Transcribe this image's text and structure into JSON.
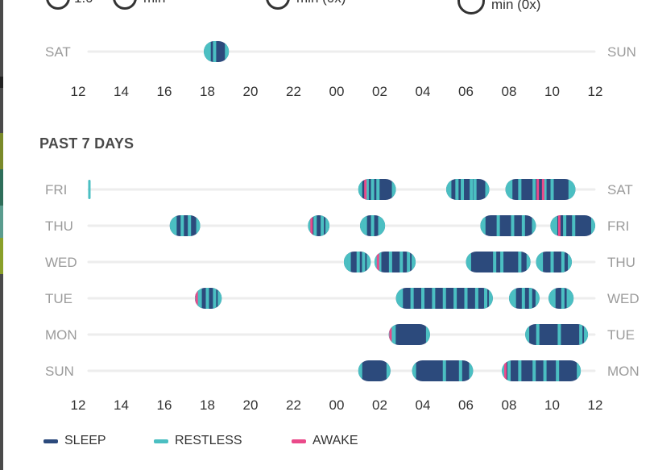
{
  "header_partial": {
    "item_1_value": "1.0",
    "item_2_unit": "min",
    "item_3_value": "min (0x)",
    "item_4_value": "min (0x)"
  },
  "section_title": "PAST 7 DAYS",
  "x_tick_labels": [
    "12",
    "14",
    "16",
    "18",
    "20",
    "22",
    "00",
    "02",
    "04",
    "06",
    "08",
    "10",
    "12"
  ],
  "legend": [
    {
      "key": "sleep",
      "label": "SLEEP",
      "color": "#2c4a7c"
    },
    {
      "key": "restless",
      "label": "RESTLESS",
      "color": "#4bbfc2"
    },
    {
      "key": "awake",
      "label": "AWAKE",
      "color": "#ea4a8a"
    }
  ],
  "chart_data": [
    {
      "type": "timeline",
      "x_unit": "hour (noon to noon)",
      "x_range": [
        "12:00",
        "12:00"
      ],
      "rows": [
        {
          "start_label": "SAT",
          "end_label": "SUN",
          "sessions": [
            {
              "start": "17:50",
              "end": "19:00",
              "restless": [
                "18:05",
                "18:20"
              ],
              "awake": []
            }
          ]
        }
      ]
    },
    {
      "type": "timeline",
      "title": "PAST 7 DAYS",
      "x_unit": "hour (noon to noon)",
      "x_range": [
        "12:00",
        "12:00"
      ],
      "rows": [
        {
          "start_label": "FRI",
          "end_label": "SAT",
          "sessions": [
            {
              "start": "12:28",
              "end": "12:32",
              "restless": [],
              "awake": []
            },
            {
              "start": "01:00",
              "end": "02:45",
              "restless": [
                "01:05",
                "01:25",
                "01:40",
                "01:55"
              ],
              "awake": [
                "01:20"
              ]
            },
            {
              "start": "05:05",
              "end": "07:05",
              "restless": [
                "05:15",
                "05:35",
                "05:50",
                "06:15",
                "06:25"
              ],
              "awake": []
            },
            {
              "start": "07:50",
              "end": "11:05",
              "restless": [
                "08:05",
                "08:30",
                "09:10",
                "09:40",
                "10:00",
                "10:50"
              ],
              "awake": [
                "09:20",
                "09:35"
              ]
            }
          ]
        },
        {
          "start_label": "THU",
          "end_label": "FRI",
          "sessions": [
            {
              "start": "16:15",
              "end": "17:40",
              "restless": [
                "16:30",
                "16:50",
                "17:10"
              ],
              "awake": []
            },
            {
              "start": "22:40",
              "end": "23:40",
              "restless": [
                "23:00",
                "23:20"
              ],
              "awake": [
                "22:50"
              ]
            },
            {
              "start": "01:05",
              "end": "02:15",
              "restless": [
                "01:20",
                "01:40",
                "02:00"
              ],
              "awake": []
            },
            {
              "start": "06:40",
              "end": "09:15",
              "restless": [
                "06:50",
                "07:30",
                "08:10",
                "08:40"
              ],
              "awake": []
            },
            {
              "start": "09:55",
              "end": "12:00",
              "restless": [
                "10:10",
                "10:35",
                "11:00"
              ],
              "awake": [
                "10:20"
              ]
            }
          ]
        },
        {
          "start_label": "WED",
          "end_label": "THU",
          "sessions": [
            {
              "start": "00:20",
              "end": "01:35",
              "restless": [
                "00:35",
                "01:00",
                "01:15"
              ],
              "awake": []
            },
            {
              "start": "01:45",
              "end": "03:40",
              "restless": [
                "02:00",
                "02:30",
                "03:00",
                "03:20"
              ],
              "awake": [
                "01:55"
              ]
            },
            {
              "start": "06:00",
              "end": "09:00",
              "restless": [
                "06:10",
                "07:20",
                "07:40",
                "08:30"
              ],
              "awake": []
            },
            {
              "start": "09:15",
              "end": "10:55",
              "restless": [
                "09:30",
                "10:00",
                "10:30"
              ],
              "awake": []
            }
          ]
        },
        {
          "start_label": "TUE",
          "end_label": "WED",
          "sessions": [
            {
              "start": "17:25",
              "end": "18:40",
              "restless": [
                "17:40",
                "18:00",
                "18:20"
              ],
              "awake": [
                "17:30"
              ]
            },
            {
              "start": "02:45",
              "end": "07:15",
              "restless": [
                "03:00",
                "03:30",
                "04:00",
                "04:30",
                "05:00",
                "05:30",
                "06:00",
                "06:30",
                "06:55"
              ],
              "awake": []
            },
            {
              "start": "08:00",
              "end": "09:25",
              "restless": [
                "08:15",
                "08:40",
                "09:00"
              ],
              "awake": []
            },
            {
              "start": "09:50",
              "end": "11:00",
              "restless": [
                "10:05",
                "10:30",
                "10:45"
              ],
              "awake": []
            }
          ]
        },
        {
          "start_label": "MON",
          "end_label": "TUE",
          "sessions": [
            {
              "start": "02:25",
              "end": "04:20",
              "restless": [
                "02:40"
              ],
              "awake": [
                "02:30"
              ]
            },
            {
              "start": "08:45",
              "end": "11:40",
              "restless": [
                "09:20",
                "10:20",
                "11:20"
              ],
              "awake": []
            }
          ]
        },
        {
          "start_label": "SUN",
          "end_label": "MON",
          "sessions": [
            {
              "start": "01:00",
              "end": "02:30",
              "restless": [],
              "awake": []
            },
            {
              "start": "03:30",
              "end": "06:20",
              "restless": [
                "05:00",
                "05:45"
              ],
              "awake": []
            },
            {
              "start": "07:40",
              "end": "11:20",
              "restless": [
                "08:00",
                "08:30",
                "09:10",
                "09:40",
                "10:15"
              ],
              "awake": [
                "07:50"
              ]
            }
          ]
        }
      ]
    }
  ]
}
